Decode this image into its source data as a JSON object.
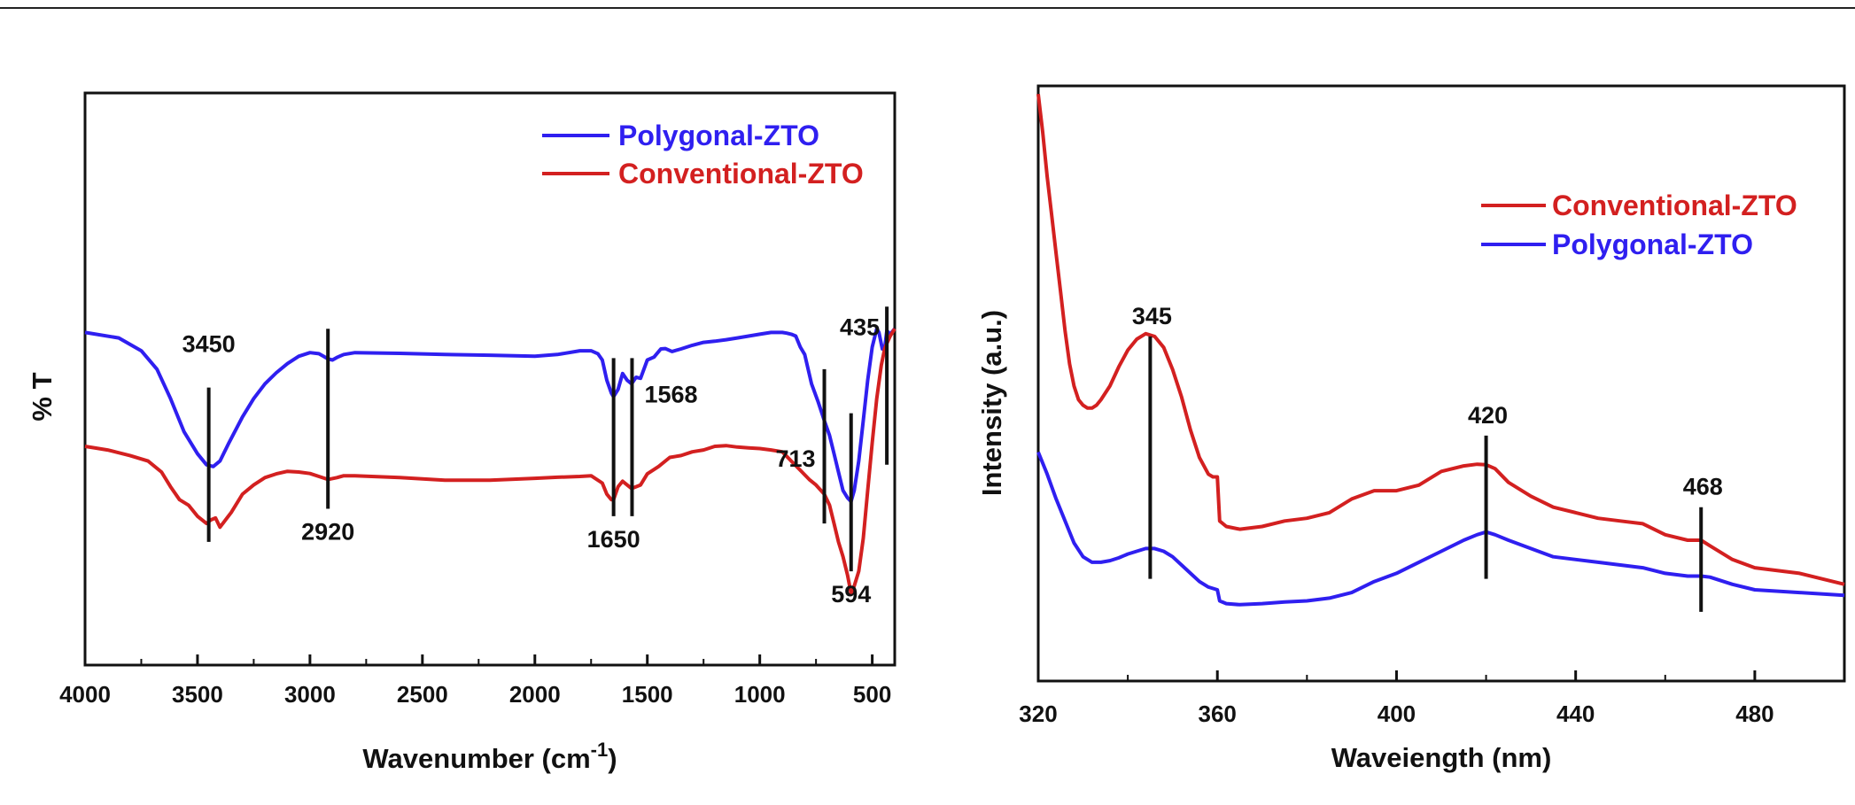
{
  "colors": {
    "polygonal": "#2f1ff0",
    "conventional": "#d32020",
    "axis": "#111111"
  },
  "chart_data": [
    {
      "type": "line",
      "xlabel": "Wavenumber (cm",
      "xlabel_sup": "-1",
      "xlabel_tail": ")",
      "ylabel": "% T",
      "xlim": [
        4000,
        400
      ],
      "ylim": [
        0,
        100
      ],
      "xticks": [
        4000,
        3500,
        3000,
        2500,
        2000,
        1500,
        1000,
        500
      ],
      "xtick_labels": [
        "4000",
        "3500",
        "3000",
        "2500",
        "2000",
        "1500",
        "1000",
        "500"
      ],
      "legend": [
        {
          "name": "Polygonal-ZTO",
          "color": "#2f1ff0"
        },
        {
          "name": "Conventional-ZTO",
          "color": "#d32020"
        }
      ],
      "series": [
        {
          "name": "Polygonal-ZTO",
          "color": "#2f1ff0",
          "x": [
            4000,
            3850,
            3750,
            3680,
            3620,
            3560,
            3500,
            3460,
            3430,
            3400,
            3360,
            3300,
            3250,
            3200,
            3150,
            3100,
            3050,
            3000,
            2960,
            2940,
            2920,
            2900,
            2880,
            2850,
            2800,
            2600,
            2400,
            2200,
            2000,
            1900,
            1800,
            1750,
            1720,
            1700,
            1680,
            1660,
            1650,
            1630,
            1610,
            1590,
            1570,
            1550,
            1530,
            1500,
            1470,
            1440,
            1420,
            1390,
            1350,
            1300,
            1250,
            1200,
            1150,
            1100,
            1050,
            1000,
            950,
            900,
            880,
            860,
            840,
            820,
            800,
            770,
            740,
            713,
            690,
            670,
            650,
            630,
            610,
            594,
            580,
            560,
            540,
            520,
            500,
            480,
            470,
            455,
            445,
            435,
            420,
            400
          ],
          "y": [
            71,
            69.5,
            66,
            61,
            53,
            44,
            38,
            35,
            34.5,
            36,
            41,
            48,
            53,
            57,
            60,
            62.5,
            64.5,
            65.5,
            65.2,
            64.5,
            63.8,
            63.5,
            64.2,
            65,
            65.5,
            65.3,
            65,
            64.8,
            64.5,
            65,
            66,
            66,
            65.2,
            63.5,
            58,
            54.5,
            53.5,
            55.5,
            59.8,
            58,
            57,
            58.8,
            58.5,
            63.5,
            64.3,
            66.5,
            66.6,
            65.8,
            66.5,
            67.5,
            68.3,
            68.6,
            69,
            69.5,
            70,
            70.5,
            71,
            71,
            70.8,
            70.5,
            70,
            67,
            65,
            57,
            52,
            47,
            43,
            38,
            33,
            28,
            26,
            25,
            28,
            36,
            47,
            58,
            67,
            72,
            71,
            66.5,
            66.5,
            71.5,
            70.5,
            72
          ]
        },
        {
          "name": "Conventional-ZTO",
          "color": "#d32020",
          "x": [
            4000,
            3900,
            3800,
            3720,
            3660,
            3620,
            3580,
            3540,
            3500,
            3460,
            3440,
            3420,
            3400,
            3350,
            3300,
            3250,
            3200,
            3150,
            3100,
            3050,
            3000,
            2960,
            2920,
            2880,
            2850,
            2800,
            2600,
            2400,
            2200,
            2000,
            1900,
            1800,
            1750,
            1700,
            1680,
            1660,
            1650,
            1630,
            1610,
            1590,
            1570,
            1550,
            1530,
            1500,
            1450,
            1400,
            1350,
            1300,
            1250,
            1200,
            1150,
            1100,
            1050,
            1000,
            950,
            900,
            860,
            820,
            780,
            750,
            713,
            690,
            670,
            650,
            630,
            610,
            594,
            580,
            560,
            540,
            520,
            500,
            480,
            460,
            445,
            435,
            420,
            400
          ],
          "y": [
            40,
            39,
            37.5,
            36,
            33,
            29,
            25.5,
            24,
            21,
            19,
            20,
            20.5,
            18,
            22,
            27,
            29.5,
            31.5,
            32.5,
            33.2,
            33,
            32.6,
            31.8,
            31,
            31.5,
            32,
            32,
            31.5,
            30.8,
            30.8,
            31.3,
            31.6,
            31.8,
            32,
            30,
            27,
            25.5,
            25.5,
            29,
            30.5,
            29.5,
            28.5,
            29,
            29.5,
            32.5,
            34.5,
            37,
            37.5,
            38.5,
            39,
            40,
            40.2,
            39.8,
            39.6,
            39.4,
            39,
            38.5,
            36,
            33.5,
            31,
            29.5,
            27,
            24,
            19,
            14,
            10,
            5,
            0,
            2,
            6,
            15,
            28,
            41,
            53,
            62,
            66.5,
            68,
            70,
            72
          ]
        }
      ],
      "peaks": [
        {
          "x": 3450,
          "label": "3450",
          "y1": 14,
          "y2": 56,
          "label_pos": "above",
          "label_offset": 95,
          "label_ydata": 56
        },
        {
          "x": 2920,
          "label": "2920",
          "y1": 23,
          "y2": 72,
          "label_pos": "below"
        },
        {
          "x": 1650,
          "label": "1650",
          "y1": 21,
          "y2": 64,
          "label_pos": "below"
        },
        {
          "x": 1568,
          "label": "1568",
          "y1": 21,
          "y2": 64,
          "label_pos": "right"
        },
        {
          "x": 713,
          "label": "713",
          "y1": 19,
          "y2": 61,
          "label_pos": "left"
        },
        {
          "x": 594,
          "label": "594",
          "y1": 6,
          "y2": 49,
          "label_pos": "below"
        },
        {
          "x": 435,
          "label": "435",
          "y1": 35,
          "y2": 78,
          "label_pos": "top-left"
        }
      ]
    },
    {
      "type": "line",
      "xlabel": "Waveiength (nm)",
      "ylabel": "Intensity (a.u.)",
      "xlim": [
        320,
        500
      ],
      "ylim": [
        0,
        100
      ],
      "xticks": [
        320,
        360,
        400,
        440,
        480
      ],
      "xtick_labels": [
        "320",
        "360",
        "400",
        "440",
        "480"
      ],
      "legend": [
        {
          "name": "Conventional-ZTO",
          "color": "#d32020"
        },
        {
          "name": "Polygonal-ZTO",
          "color": "#2f1ff0"
        }
      ],
      "series": [
        {
          "name": "Conventional-ZTO",
          "color": "#d32020",
          "x": [
            320,
            321,
            322,
            323,
            324,
            325,
            326,
            327,
            328,
            329,
            330,
            331,
            332,
            333,
            334,
            336,
            338,
            340,
            342,
            344,
            346,
            348,
            350,
            352,
            354,
            356,
            358,
            359,
            360,
            360.5,
            362,
            365,
            370,
            375,
            380,
            385,
            390,
            395,
            400,
            405,
            410,
            415,
            418,
            420,
            422,
            425,
            430,
            435,
            440,
            445,
            450,
            455,
            460,
            465,
            468,
            470,
            475,
            480,
            490,
            500
          ],
          "y": [
            99,
            92,
            84,
            77,
            70,
            63,
            56,
            50,
            46,
            43.5,
            42.5,
            42,
            42,
            42.5,
            43.5,
            46,
            49.5,
            52.5,
            54.5,
            55.5,
            55,
            53,
            49,
            44,
            38,
            33,
            30,
            29.5,
            29.5,
            21.5,
            20.5,
            20,
            20.5,
            21.5,
            22,
            23,
            25.5,
            27,
            27,
            28,
            30.5,
            31.5,
            31.8,
            31.7,
            31,
            28.5,
            26,
            24,
            23,
            22,
            21.5,
            21,
            19,
            18,
            18,
            17,
            14.5,
            13,
            12,
            10
          ]
        },
        {
          "name": "Polygonal-ZTO",
          "color": "#2f1ff0",
          "x": [
            320,
            322,
            324,
            326,
            328,
            330,
            332,
            334,
            336,
            338,
            340,
            342,
            344,
            346,
            348,
            350,
            352,
            354,
            356,
            358,
            360,
            360.5,
            362,
            365,
            370,
            375,
            380,
            385,
            390,
            395,
            400,
            405,
            410,
            415,
            418,
            420,
            422,
            425,
            430,
            435,
            440,
            445,
            450,
            455,
            460,
            465,
            468,
            470,
            475,
            480,
            490,
            500
          ],
          "y": [
            34,
            30,
            25.5,
            21.5,
            17.5,
            15,
            14,
            14,
            14.3,
            14.8,
            15.5,
            16,
            16.5,
            16.5,
            16,
            15,
            13.5,
            12,
            10.5,
            9.5,
            9,
            7,
            6.5,
            6.3,
            6.5,
            6.8,
            7,
            7.5,
            8.5,
            10.5,
            12,
            14,
            16,
            18,
            19,
            19.5,
            19,
            18,
            16.5,
            15,
            14.5,
            14,
            13.5,
            13,
            12,
            11.5,
            11.5,
            11.3,
            10,
            9,
            8.5,
            8
          ]
        }
      ],
      "peaks": [
        {
          "x": 345,
          "label": "345",
          "y1": 11,
          "y2": 55,
          "label_pos": "above-offset"
        },
        {
          "x": 420,
          "label": "420",
          "y1": 11,
          "y2": 37,
          "label_pos": "above-offset"
        },
        {
          "x": 468,
          "label": "468",
          "y1": 5,
          "y2": 24,
          "label_pos": "above-offset"
        }
      ]
    }
  ]
}
